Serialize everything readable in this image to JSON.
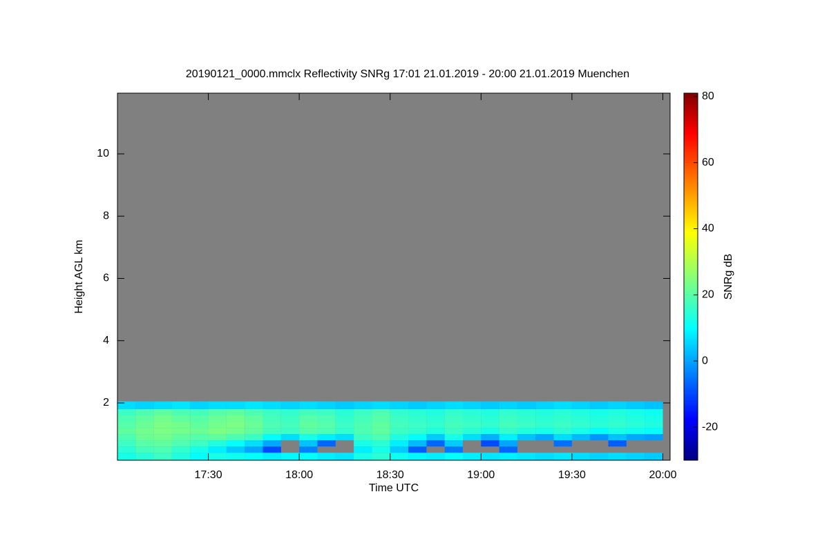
{
  "chart_data": {
    "type": "heatmap",
    "title": "20190121_0000.mmclx Reflectivity SNRg   17:01 21.01.2019 - 20:00 21.01.2019 Muenchen",
    "x_label": "Time UTC",
    "y_label": "Height AGL km",
    "colorbar_label": "SNRg dB",
    "colormap": "jet",
    "missing_color": "#808080",
    "xlim": [
      17.0,
      20.04
    ],
    "ylim": [
      0.16,
      11.95
    ],
    "clim": [
      -30,
      81
    ],
    "xticks": [
      {
        "value": 17.5,
        "label": "17:30"
      },
      {
        "value": 18,
        "label": "18:00"
      },
      {
        "value": 18.5,
        "label": "18:30"
      },
      {
        "value": 19,
        "label": "19:00"
      },
      {
        "value": 19.5,
        "label": "19:30"
      },
      {
        "value": 20,
        "label": "20:00"
      }
    ],
    "yticks": [
      2,
      4,
      6,
      8,
      10
    ],
    "cticks": [
      -20,
      0,
      20,
      40,
      60,
      80
    ],
    "x_edges": [
      17.0,
      17.1,
      17.2,
      17.3,
      17.4,
      17.5,
      17.6,
      17.7,
      17.8,
      17.9,
      18.0,
      18.1,
      18.2,
      18.3,
      18.4,
      18.5,
      18.6,
      18.7,
      18.8,
      18.9,
      19.0,
      19.1,
      19.2,
      19.3,
      19.4,
      19.5,
      19.6,
      19.7,
      19.8,
      19.9,
      20.0
    ],
    "y_edges": [
      0.16,
      0.4,
      0.6,
      0.8,
      1.0,
      1.2,
      1.4,
      1.6,
      1.8,
      2.05
    ],
    "z": [
      [
        14,
        16,
        18,
        15,
        12,
        14,
        13,
        12,
        10,
        11,
        12,
        10,
        9,
        14,
        16,
        13,
        11,
        10,
        12,
        10,
        9,
        10,
        9,
        8,
        9,
        8,
        7,
        8,
        7,
        6
      ],
      [
        16,
        19,
        20,
        17,
        14,
        10,
        6,
        2,
        -8,
        null,
        -2,
        null,
        null,
        10,
        14,
        6,
        -6,
        null,
        -3,
        null,
        null,
        -5,
        null,
        null,
        null,
        null,
        null,
        null,
        null,
        null
      ],
      [
        18,
        21,
        22,
        20,
        18,
        15,
        12,
        8,
        2,
        null,
        5,
        -5,
        null,
        14,
        16,
        10,
        4,
        -5,
        6,
        null,
        -8,
        2,
        null,
        null,
        -4,
        null,
        null,
        -6,
        null,
        null
      ],
      [
        20,
        23,
        24,
        22,
        21,
        22,
        20,
        18,
        12,
        8,
        14,
        10,
        8,
        18,
        20,
        15,
        12,
        6,
        14,
        8,
        3,
        10,
        5,
        2,
        8,
        4,
        0,
        5,
        2,
        1
      ],
      [
        22,
        24,
        25,
        24,
        23,
        25,
        24,
        22,
        19,
        18,
        21,
        20,
        17,
        20,
        22,
        18,
        17,
        15,
        18,
        16,
        14,
        17,
        15,
        14,
        16,
        14,
        12,
        14,
        13,
        12
      ],
      [
        21,
        23,
        25,
        24,
        22,
        24,
        25,
        23,
        20,
        19,
        22,
        21,
        18,
        20,
        22,
        19,
        18,
        17,
        19,
        18,
        17,
        19,
        18,
        17,
        18,
        17,
        16,
        17,
        16,
        15
      ],
      [
        20,
        22,
        24,
        22,
        21,
        23,
        24,
        22,
        19,
        18,
        21,
        20,
        17,
        19,
        21,
        18,
        17,
        16,
        18,
        17,
        16,
        18,
        17,
        16,
        17,
        16,
        15,
        16,
        15,
        14
      ],
      [
        18,
        20,
        22,
        20,
        19,
        21,
        22,
        20,
        18,
        17,
        19,
        18,
        16,
        18,
        20,
        17,
        16,
        15,
        17,
        16,
        15,
        17,
        16,
        15,
        16,
        15,
        14,
        15,
        14,
        13
      ],
      [
        8,
        7,
        8,
        9,
        7,
        8,
        8,
        9,
        8,
        7,
        8,
        7,
        6,
        7,
        8,
        7,
        6,
        7,
        8,
        7,
        6,
        7,
        6,
        7,
        8,
        7,
        6,
        7,
        6,
        5
      ]
    ]
  }
}
